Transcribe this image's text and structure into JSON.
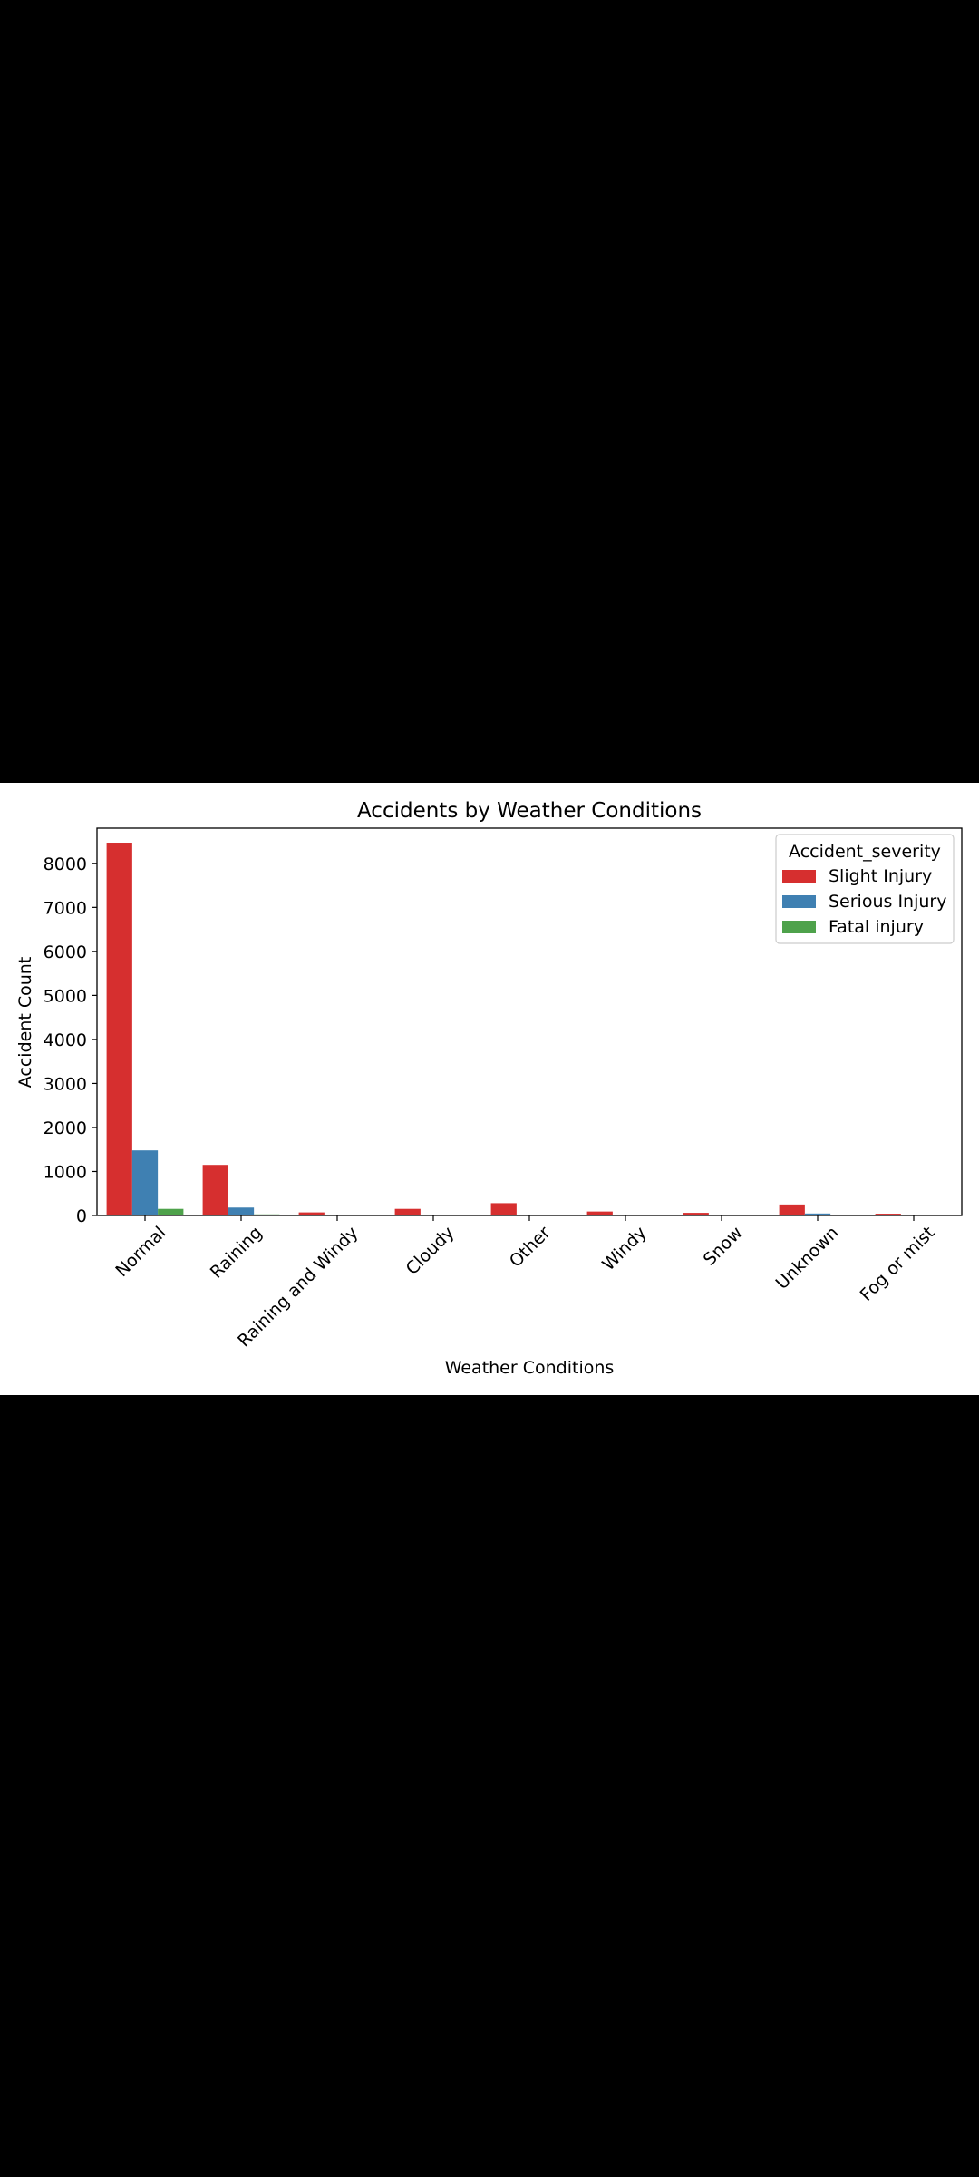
{
  "chart_data": {
    "type": "bar",
    "title": "Accidents by Weather Conditions",
    "xlabel": "Weather Conditions",
    "ylabel": "Accident Count",
    "categories": [
      "Normal",
      "Raining",
      "Raining and Windy",
      "Cloudy",
      "Other",
      "Windy",
      "Snow",
      "Unknown",
      "Fog or mist"
    ],
    "series": [
      {
        "name": "Slight Injury",
        "color": "#d62f2f",
        "values": [
          8470,
          1150,
          70,
          150,
          280,
          90,
          60,
          250,
          40
        ]
      },
      {
        "name": "Serious Injury",
        "color": "#3f80b2",
        "values": [
          1480,
          180,
          3,
          20,
          15,
          8,
          10,
          45,
          5
        ]
      },
      {
        "name": "Fatal injury",
        "color": "#4ea24b",
        "values": [
          150,
          25,
          0,
          3,
          3,
          2,
          0,
          5,
          1
        ]
      }
    ],
    "ylim": [
      0,
      8800
    ],
    "yticks": [
      0,
      1000,
      2000,
      3000,
      4000,
      5000,
      6000,
      7000,
      8000
    ],
    "legend": {
      "title": "Accident_severity",
      "position": "top-right"
    },
    "grid": false
  }
}
